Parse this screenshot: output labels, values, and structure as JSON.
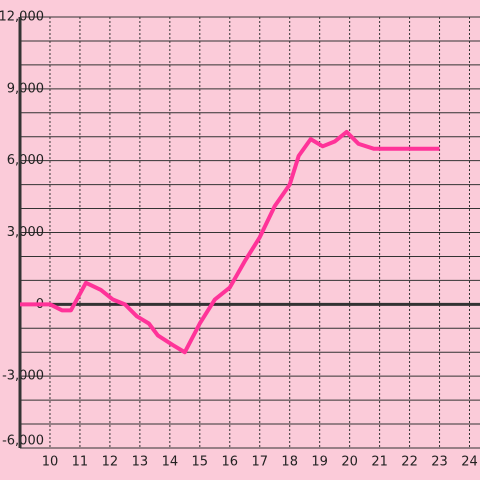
{
  "chart_data": {
    "type": "line",
    "x": [
      9,
      10,
      10.4,
      10.7,
      11.2,
      11.7,
      12.1,
      12.5,
      12.9,
      13.3,
      13.6,
      14.1,
      14.5,
      15,
      15.5,
      16,
      16.5,
      17,
      17.5,
      18,
      18.3,
      18.7,
      19.1,
      19.5,
      19.9,
      20.3,
      20.8,
      23
    ],
    "series": [
      {
        "color": "#ff3399",
        "values": [
          0,
          0,
          -250,
          -250,
          900,
          600,
          200,
          0,
          -500,
          -800,
          -1300,
          -1700,
          -2000,
          -800,
          200,
          700,
          1800,
          2800,
          4100,
          5000,
          6200,
          6900,
          6600,
          6800,
          7200,
          6700,
          6500,
          6500
        ]
      }
    ],
    "xlim": [
      9,
      24.35
    ],
    "xticks": [
      10,
      11,
      12,
      13,
      14,
      15,
      16,
      17,
      18,
      19,
      20,
      21,
      22,
      23,
      24
    ],
    "ylim": [
      -6000,
      12000
    ],
    "yticks": [
      {
        "value": -6000,
        "label": "-6,000"
      },
      {
        "value": -3000,
        "label": "-3,000"
      },
      0,
      {
        "value": 3000,
        "label": "3,000"
      },
      {
        "value": 6000,
        "label": "6,000"
      },
      {
        "value": 9000,
        "label": "9,000"
      },
      {
        "value": 12000,
        "label": "12,000"
      }
    ],
    "yminor": [
      -5000,
      -4000,
      -2000,
      -1000,
      1000,
      2000,
      4000,
      5000,
      7000,
      8000,
      10000,
      11000
    ],
    "grid": true
  }
}
